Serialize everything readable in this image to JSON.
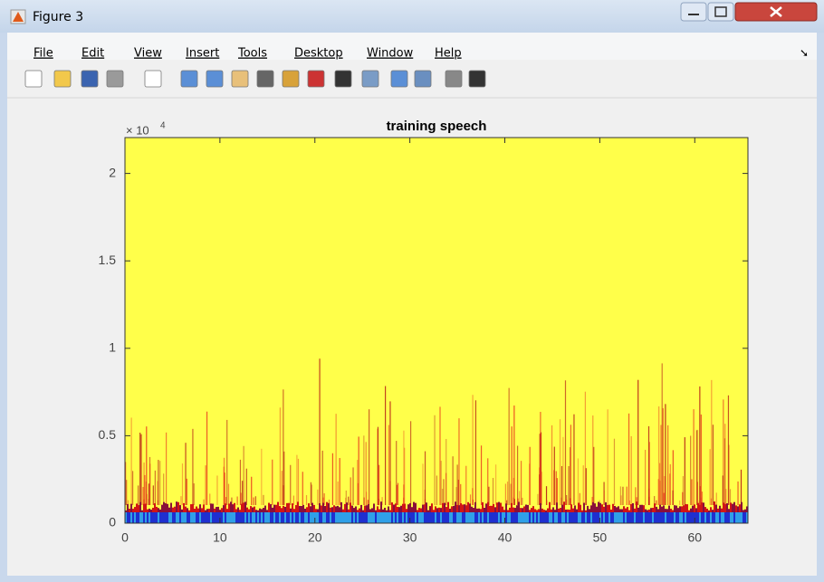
{
  "window": {
    "title": "Figure 3"
  },
  "menu": [
    "File",
    "Edit",
    "View",
    "Insert",
    "Tools",
    "Desktop",
    "Window",
    "Help"
  ],
  "chart_data": {
    "type": "spectrogram",
    "title": "training speech",
    "xlim": [
      0,
      65.6
    ],
    "xticks": [
      0,
      10,
      20,
      30,
      40,
      50,
      60
    ],
    "ylim": [
      0,
      2.205
    ],
    "yticks": [
      0,
      0.5,
      1,
      1.5,
      2
    ],
    "y_multiplier": {
      "base": "× 10",
      "exponent": "4"
    }
  }
}
